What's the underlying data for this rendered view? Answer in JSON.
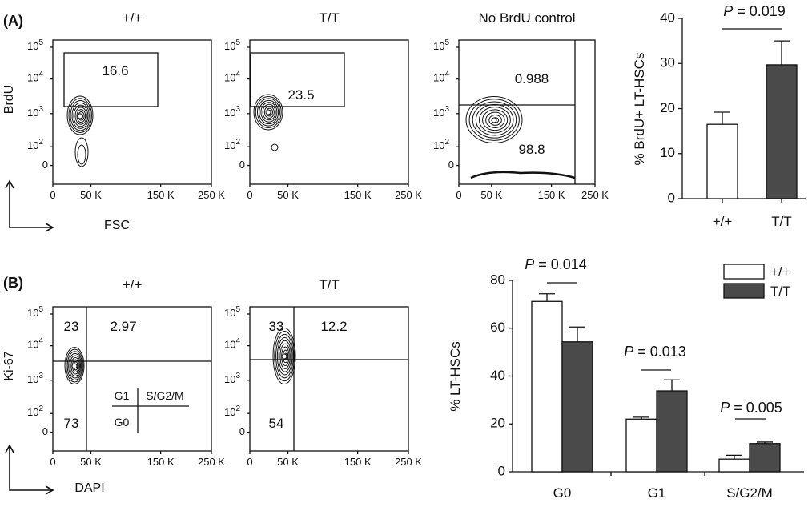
{
  "panel_labels": {
    "a": "(A)",
    "b": "(B)"
  },
  "chart_data": [
    {
      "type": "scatter",
      "id": "flow-a-wt",
      "title": "+/+",
      "xlabel": "FSC",
      "ylabel": "BrdU",
      "x_ticks": [
        "0",
        "50 K",
        "150 K",
        "250 K"
      ],
      "y_ticks": [
        "10^5",
        "10^4",
        "10^3",
        "10^2",
        "0"
      ],
      "gate_values": [
        "16.6"
      ]
    },
    {
      "type": "scatter",
      "id": "flow-a-tt",
      "title": "T/T",
      "xlabel": "",
      "ylabel": "",
      "x_ticks": [
        "0",
        "50 K",
        "150 K",
        "250 K"
      ],
      "y_ticks": [
        "10^5",
        "10^4",
        "10^3",
        "10^2",
        "0"
      ],
      "gate_values": [
        "23.5"
      ]
    },
    {
      "type": "scatter",
      "id": "flow-a-nobrdu",
      "title": "No BrdU control",
      "xlabel": "",
      "ylabel": "",
      "x_ticks": [
        "0",
        "50 K",
        "150 K",
        "250 K"
      ],
      "y_ticks": [
        "10^5",
        "10^4",
        "10^3",
        "10^2",
        "0"
      ],
      "gate_values": [
        "0.988",
        "98.8"
      ]
    },
    {
      "type": "bar",
      "id": "bar-brdu",
      "categories": [
        "+/+",
        "T/T"
      ],
      "values": [
        16.5,
        29.7
      ],
      "errors": [
        2.7,
        5.3
      ],
      "colors": [
        "#ffffff",
        "#4a4a4a"
      ],
      "ylabel": "% BrdU+ LT-HSCs",
      "ylim": [
        0,
        40
      ],
      "yticks": [
        "0",
        "10",
        "20",
        "30",
        "40"
      ],
      "annotation": {
        "p_label": "P",
        "p_value": " = 0.019"
      }
    },
    {
      "type": "scatter",
      "id": "flow-b-wt",
      "title": "+/+",
      "xlabel": "DAPI",
      "ylabel": "Ki-67",
      "x_ticks": [
        "0",
        "50 K",
        "150 K",
        "250 K"
      ],
      "y_ticks": [
        "10^5",
        "10^4",
        "10^3",
        "10^2",
        "0"
      ],
      "quadrant_values": {
        "upper_left": "23",
        "upper_right": "2.97",
        "lower_left": "73"
      },
      "quadrant_key": [
        "G1",
        "S/G2/M",
        "G0"
      ]
    },
    {
      "type": "scatter",
      "id": "flow-b-tt",
      "title": "T/T",
      "xlabel": "",
      "ylabel": "",
      "x_ticks": [
        "0",
        "50 K",
        "150 K",
        "250 K"
      ],
      "y_ticks": [
        "10^5",
        "10^4",
        "10^3",
        "10^2",
        "0"
      ],
      "quadrant_values": {
        "upper_left": "33",
        "upper_right": "12.2",
        "lower_left": "54"
      }
    },
    {
      "type": "bar",
      "id": "bar-cellcycle",
      "categories": [
        "G0",
        "G1",
        "S/G2/M"
      ],
      "series": [
        {
          "name": "+/+",
          "color": "#ffffff",
          "values": [
            71.2,
            22.0,
            5.3
          ],
          "errors": [
            3.2,
            0.8,
            1.6
          ]
        },
        {
          "name": "T/T",
          "color": "#4a4a4a",
          "values": [
            54.3,
            33.8,
            11.8
          ],
          "errors": [
            6.2,
            4.6,
            0.6
          ]
        }
      ],
      "ylabel": "% LT-HSCs",
      "ylim": [
        0,
        80
      ],
      "yticks": [
        "0",
        "20",
        "40",
        "60",
        "80"
      ],
      "legend": "top-right",
      "annotations": [
        {
          "p_label": "P",
          "p_value": " = 0.014"
        },
        {
          "p_label": "P",
          "p_value": " = 0.013"
        },
        {
          "p_label": "P",
          "p_value": " = 0.005"
        }
      ]
    }
  ]
}
